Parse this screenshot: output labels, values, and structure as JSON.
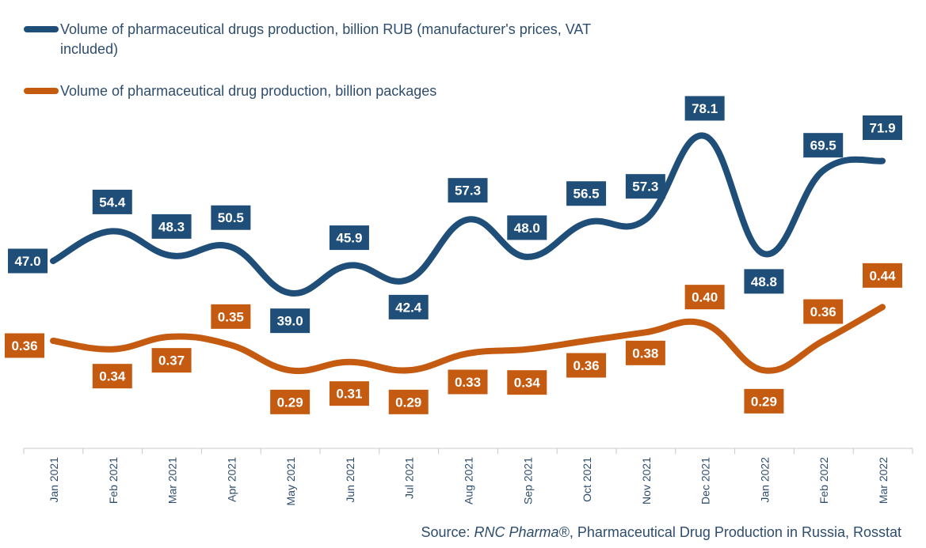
{
  "chart_data": {
    "type": "line",
    "categories": [
      "Jan 2021",
      "Feb 2021",
      "Mar 2021",
      "Apr 2021",
      "May 2021",
      "Jun 2021",
      "Jul 2021",
      "Aug 2021",
      "Sep 2021",
      "Oct 2021",
      "Nov 2021",
      "Dec 2021",
      "Jan 2022",
      "Feb 2022",
      "Mar 2022"
    ],
    "series": [
      {
        "name": "Volume of pharmaceutical drugs production, billion RUB (manufacturer's prices, VAT included)",
        "color": "#1f4e79",
        "values": [
          47.0,
          54.4,
          48.3,
          50.5,
          39.0,
          45.9,
          42.4,
          57.3,
          48.0,
          56.5,
          57.3,
          78.1,
          48.8,
          69.5,
          71.9
        ],
        "labels": [
          "47.0",
          "54.4",
          "48.3",
          "50.5",
          "39.0",
          "45.9",
          "42.4",
          "57.3",
          "48.0",
          "56.5",
          "57.3",
          "78.1",
          "48.8",
          "69.5",
          "71.9"
        ]
      },
      {
        "name": "Volume of pharmaceutical drug production, billion packages",
        "color": "#c55a11",
        "values": [
          0.36,
          0.34,
          0.37,
          0.35,
          0.29,
          0.31,
          0.29,
          0.33,
          0.34,
          0.36,
          0.38,
          0.4,
          0.29,
          0.36,
          0.44
        ],
        "labels": [
          "0.36",
          "0.34",
          "0.37",
          "0.35",
          "0.29",
          "0.31",
          "0.29",
          "0.33",
          "0.34",
          "0.36",
          "0.38",
          "0.40",
          "0.29",
          "0.36",
          "0.44"
        ]
      }
    ],
    "legend_position": "top-left",
    "grid": false,
    "source_prefix": "Source: ",
    "source_italic": "RNC Pharma®",
    "source_rest": ", Pharmaceutical Drug Production in Russia, Rosstat"
  }
}
